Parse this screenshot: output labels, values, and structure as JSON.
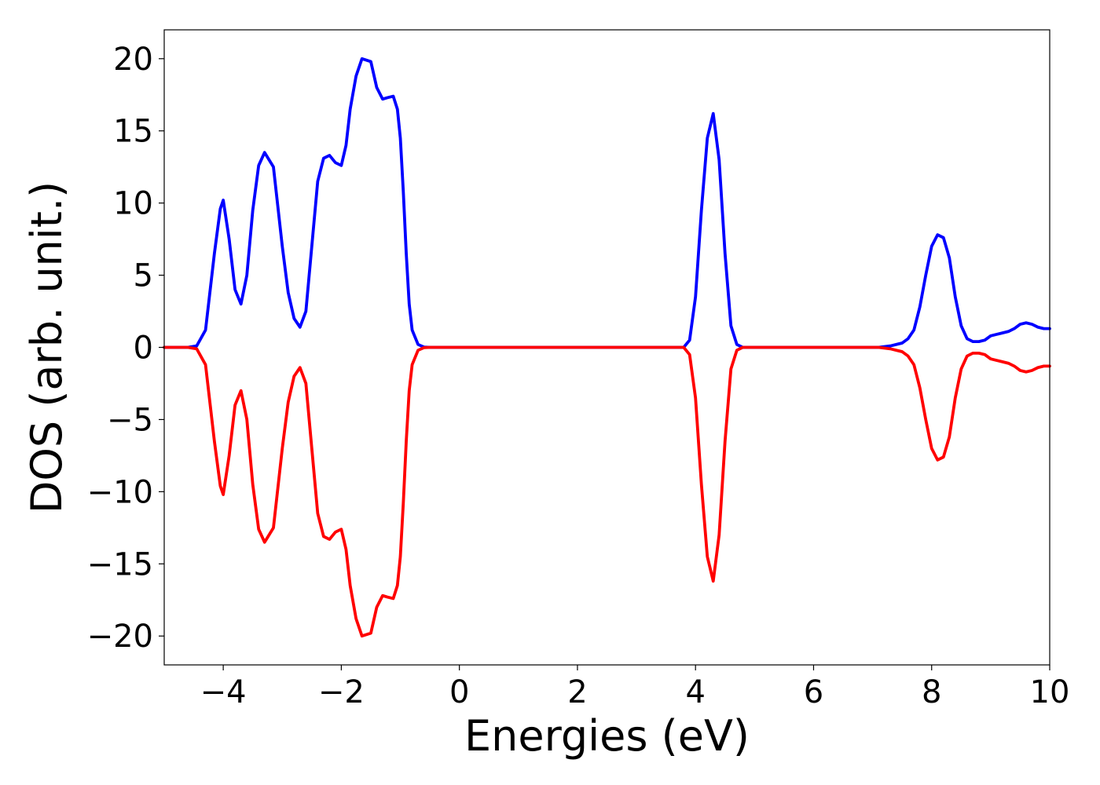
{
  "chart_data": {
    "type": "line",
    "title": "",
    "xlabel": "Energies (eV)",
    "ylabel": "DOS (arb. unit.)",
    "xlim": [
      -5,
      10
    ],
    "ylim": [
      -22,
      22
    ],
    "grid": false,
    "xticks": [
      -4,
      -2,
      0,
      2,
      4,
      6,
      8,
      10
    ],
    "xtick_labels": [
      "−4",
      "−2",
      "0",
      "2",
      "4",
      "6",
      "8",
      "10"
    ],
    "yticks": [
      20,
      15,
      10,
      5,
      0,
      -5,
      -10,
      -15,
      -20
    ],
    "ytick_labels": [
      "20",
      "15",
      "10",
      "5",
      "0",
      "−5",
      "−10",
      "−15",
      "−20"
    ],
    "series": [
      {
        "color": "#0000ff",
        "x": [
          -5,
          -4.6,
          -4.45,
          -4.3,
          -4.15,
          -4.05,
          -4.0,
          -3.9,
          -3.8,
          -3.7,
          -3.6,
          -3.5,
          -3.4,
          -3.3,
          -3.15,
          -3.0,
          -2.9,
          -2.8,
          -2.7,
          -2.6,
          -2.5,
          -2.4,
          -2.3,
          -2.2,
          -2.1,
          -2.0,
          -1.92,
          -1.85,
          -1.75,
          -1.65,
          -1.5,
          -1.4,
          -1.3,
          -1.22,
          -1.12,
          -1.05,
          -1.0,
          -0.95,
          -0.9,
          -0.85,
          -0.8,
          -0.7,
          -0.6,
          -0.5,
          0,
          2,
          3.8,
          3.9,
          4.0,
          4.1,
          4.2,
          4.3,
          4.4,
          4.5,
          4.6,
          4.7,
          4.8,
          5,
          6,
          7.1,
          7.3,
          7.5,
          7.6,
          7.7,
          7.8,
          7.9,
          8.0,
          8.1,
          8.2,
          8.3,
          8.4,
          8.5,
          8.6,
          8.7,
          8.8,
          8.9,
          9.0,
          9.1,
          9.2,
          9.3,
          9.4,
          9.5,
          9.6,
          9.7,
          9.8,
          9.9,
          10.0
        ],
        "y": [
          0,
          0,
          0.1,
          1.2,
          6.5,
          9.6,
          10.2,
          7.5,
          4.0,
          3.0,
          5.0,
          9.5,
          12.6,
          13.5,
          12.5,
          7.0,
          3.8,
          2.0,
          1.4,
          2.5,
          7.0,
          11.5,
          13.1,
          13.3,
          12.8,
          12.6,
          14.0,
          16.5,
          18.8,
          20.0,
          19.8,
          18.0,
          17.2,
          17.3,
          17.4,
          16.5,
          14.5,
          10.8,
          6.5,
          3.0,
          1.2,
          0.2,
          0.02,
          0,
          0,
          0,
          0,
          0.5,
          3.5,
          9.5,
          14.5,
          16.2,
          13.0,
          6.5,
          1.5,
          0.2,
          0,
          0,
          0,
          0,
          0.1,
          0.3,
          0.6,
          1.2,
          2.8,
          5.0,
          7.0,
          7.8,
          7.6,
          6.2,
          3.5,
          1.5,
          0.6,
          0.4,
          0.4,
          0.5,
          0.8,
          0.9,
          1.0,
          1.1,
          1.3,
          1.6,
          1.7,
          1.6,
          1.4,
          1.3,
          1.3
        ]
      },
      {
        "color": "#ff0000",
        "x": [
          -5,
          -4.6,
          -4.45,
          -4.3,
          -4.15,
          -4.05,
          -4.0,
          -3.9,
          -3.8,
          -3.7,
          -3.6,
          -3.5,
          -3.4,
          -3.3,
          -3.15,
          -3.0,
          -2.9,
          -2.8,
          -2.7,
          -2.6,
          -2.5,
          -2.4,
          -2.3,
          -2.2,
          -2.1,
          -2.0,
          -1.92,
          -1.85,
          -1.75,
          -1.65,
          -1.5,
          -1.4,
          -1.3,
          -1.22,
          -1.12,
          -1.05,
          -1.0,
          -0.95,
          -0.9,
          -0.85,
          -0.8,
          -0.7,
          -0.6,
          -0.5,
          0,
          2,
          3.8,
          3.9,
          4.0,
          4.1,
          4.2,
          4.3,
          4.4,
          4.5,
          4.6,
          4.7,
          4.8,
          5,
          6,
          7.1,
          7.3,
          7.5,
          7.6,
          7.7,
          7.8,
          7.9,
          8.0,
          8.1,
          8.2,
          8.3,
          8.4,
          8.5,
          8.6,
          8.7,
          8.8,
          8.9,
          9.0,
          9.1,
          9.2,
          9.3,
          9.4,
          9.5,
          9.6,
          9.7,
          9.8,
          9.9,
          10.0
        ],
        "y": [
          0,
          0,
          -0.1,
          -1.2,
          -6.5,
          -9.6,
          -10.2,
          -7.5,
          -4.0,
          -3.0,
          -5.0,
          -9.5,
          -12.6,
          -13.5,
          -12.5,
          -7.0,
          -3.8,
          -2.0,
          -1.4,
          -2.5,
          -7.0,
          -11.5,
          -13.1,
          -13.3,
          -12.8,
          -12.6,
          -14.0,
          -16.5,
          -18.8,
          -20.0,
          -19.8,
          -18.0,
          -17.2,
          -17.3,
          -17.4,
          -16.5,
          -14.5,
          -10.8,
          -6.5,
          -3.0,
          -1.2,
          -0.2,
          -0.02,
          0,
          0,
          0,
          0,
          -0.5,
          -3.5,
          -9.5,
          -14.5,
          -16.2,
          -13.0,
          -6.5,
          -1.5,
          -0.2,
          0,
          0,
          0,
          0,
          -0.1,
          -0.3,
          -0.6,
          -1.2,
          -2.8,
          -5.0,
          -7.0,
          -7.8,
          -7.6,
          -6.2,
          -3.5,
          -1.5,
          -0.6,
          -0.4,
          -0.4,
          -0.5,
          -0.8,
          -0.9,
          -1.0,
          -1.1,
          -1.3,
          -1.6,
          -1.7,
          -1.6,
          -1.4,
          -1.3,
          -1.3
        ]
      }
    ]
  }
}
